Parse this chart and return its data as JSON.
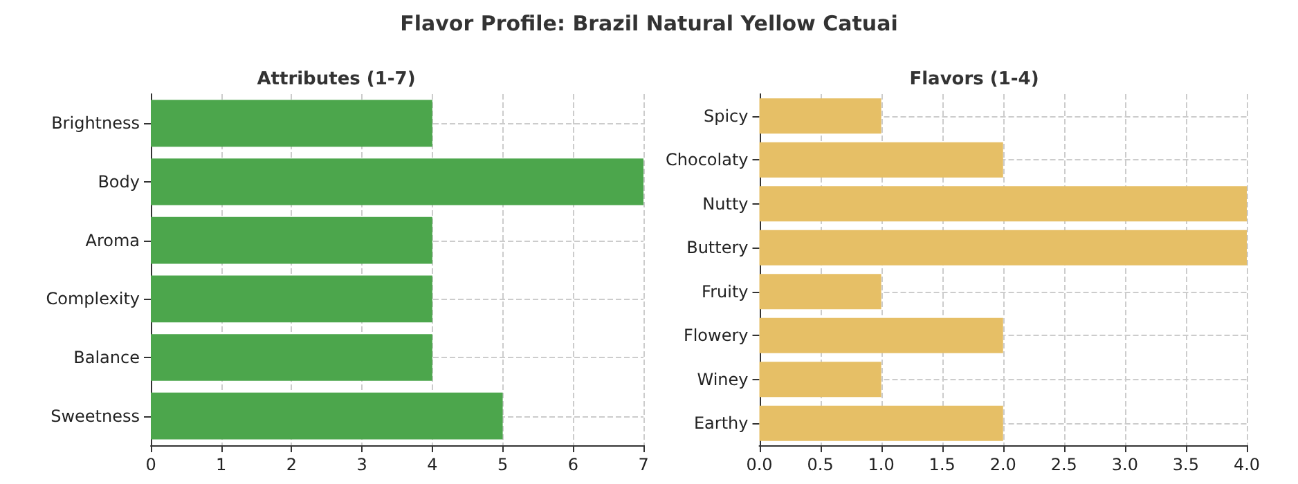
{
  "chart_data": [
    {
      "type": "other",
      "title": "Flavor Profile: Brazil Natural Yellow Catuai"
    },
    {
      "type": "bar",
      "orientation": "horizontal",
      "title": "Attributes (1-7)",
      "categories": [
        "Brightness",
        "Body",
        "Aroma",
        "Complexity",
        "Balance",
        "Sweetness"
      ],
      "values": [
        4,
        7,
        4,
        4,
        4,
        5
      ],
      "color": "#4ca64c",
      "xlim": [
        0,
        7
      ],
      "xticks": [
        0,
        1,
        2,
        3,
        4,
        5,
        6,
        7
      ],
      "grid": true
    },
    {
      "type": "bar",
      "orientation": "horizontal",
      "title": "Flavors (1-4)",
      "categories": [
        "Spicy",
        "Chocolaty",
        "Nutty",
        "Buttery",
        "Fruity",
        "Flowery",
        "Winey",
        "Earthy"
      ],
      "values": [
        1,
        2,
        4,
        4,
        1,
        2,
        1,
        2
      ],
      "color": "#e6bf66",
      "xlim": [
        0,
        4
      ],
      "xticks": [
        {
          "value": 0,
          "label": "0.0"
        },
        {
          "value": 0.5,
          "label": "0.5"
        },
        {
          "value": 1,
          "label": "1.0"
        },
        {
          "value": 1.5,
          "label": "1.5"
        },
        {
          "value": 2,
          "label": "2.0"
        },
        {
          "value": 2.5,
          "label": "2.5"
        },
        {
          "value": 3,
          "label": "3.0"
        },
        {
          "value": 3.5,
          "label": "3.5"
        },
        {
          "value": 4,
          "label": "4.0"
        }
      ],
      "grid": true
    }
  ]
}
